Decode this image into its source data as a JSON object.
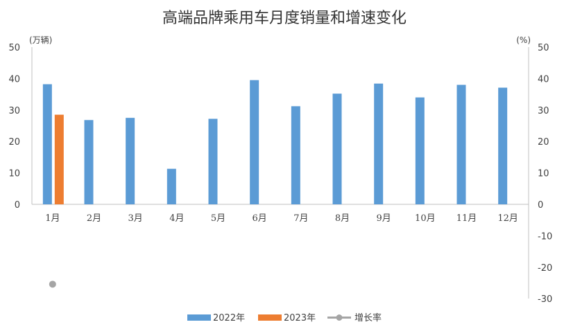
{
  "chart_data": {
    "type": "bar",
    "title": "高端品牌乘用车月度销量和增速变化",
    "left_unit": "(万辆)",
    "right_unit": "(%)",
    "categories": [
      "1月",
      "2月",
      "3月",
      "4月",
      "5月",
      "6月",
      "7月",
      "8月",
      "9月",
      "10月",
      "11月",
      "12月"
    ],
    "series": [
      {
        "name": "2022年",
        "type": "bar",
        "axis": "left",
        "color": "#5b9bd5",
        "values": [
          38.2,
          26.8,
          27.5,
          11.3,
          27.2,
          39.5,
          31.2,
          35.2,
          38.4,
          34.0,
          38.0,
          37.1
        ]
      },
      {
        "name": "2023年",
        "type": "bar",
        "axis": "left",
        "color": "#ed7d31",
        "values": [
          28.5,
          null,
          null,
          null,
          null,
          null,
          null,
          null,
          null,
          null,
          null,
          null
        ]
      },
      {
        "name": "增长率",
        "type": "line",
        "axis": "right",
        "color": "#a5a5a5",
        "values": [
          -25.4,
          null,
          null,
          null,
          null,
          null,
          null,
          null,
          null,
          null,
          null,
          null
        ]
      }
    ],
    "left_axis": {
      "min": 0,
      "max": 50,
      "ticks": [
        0,
        10,
        20,
        30,
        40,
        50
      ]
    },
    "right_axis": {
      "min": -30,
      "max": 50,
      "ticks": [
        50,
        40,
        30,
        20,
        10,
        0,
        -10,
        -20,
        -30
      ],
      "negative_color": "#ff0000"
    },
    "grid": false,
    "legend_position": "bottom"
  }
}
